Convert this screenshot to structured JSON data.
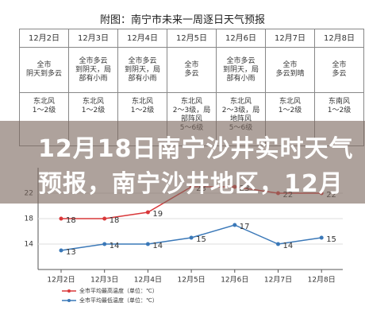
{
  "header": {
    "title": "附图：南宁市未来一周逐日天气预报"
  },
  "table": {
    "rows": [
      [
        "12月2日",
        "12月3日",
        "12月4日",
        "12月5日",
        "12月6日",
        "12月7日",
        "12月8日"
      ],
      [
        "全市\n阴天到多云",
        "全市多云\n到阴天，局\n部有小雨",
        "全市多云\n到阴天，局\n部有小雨",
        "全市\n多云",
        "全市多云\n到阴天，局\n部有小雨",
        "全市\n多云到晴",
        "全市\n多云"
      ],
      [
        "东北风\n1～2级",
        "东北风\n1～2级",
        "东北风\n1～2级",
        "东北风\n2～3级，局\n部阵风\n5～6级",
        "东北风\n2～3级，局\n地阵风\n5～6级",
        "东北风\n1～2级",
        "东南风\n1～2级"
      ]
    ]
  },
  "overlay": {
    "lines": [
      "12月18日南宁沙井实时天气",
      "预报，南宁沙井地区，12月"
    ]
  },
  "chart_data": {
    "type": "line",
    "categories": [
      "12月2日",
      "12月3日",
      "12月4日",
      "12月5日",
      "12月6日",
      "12月7日",
      "12月8日"
    ],
    "series": [
      {
        "name": "全市平均最高温度（单位：℃）",
        "color": "#d9383a",
        "values": [
          18,
          18,
          19,
          23,
          23,
          22,
          22
        ]
      },
      {
        "name": "全市平均最低温度（单位：℃）",
        "color": "#3a78b8",
        "values": [
          13,
          14,
          14,
          15,
          17,
          14,
          15
        ]
      }
    ],
    "ylim": [
      10,
      26
    ],
    "yticks": [
      14,
      18,
      22
    ],
    "grid": true
  }
}
